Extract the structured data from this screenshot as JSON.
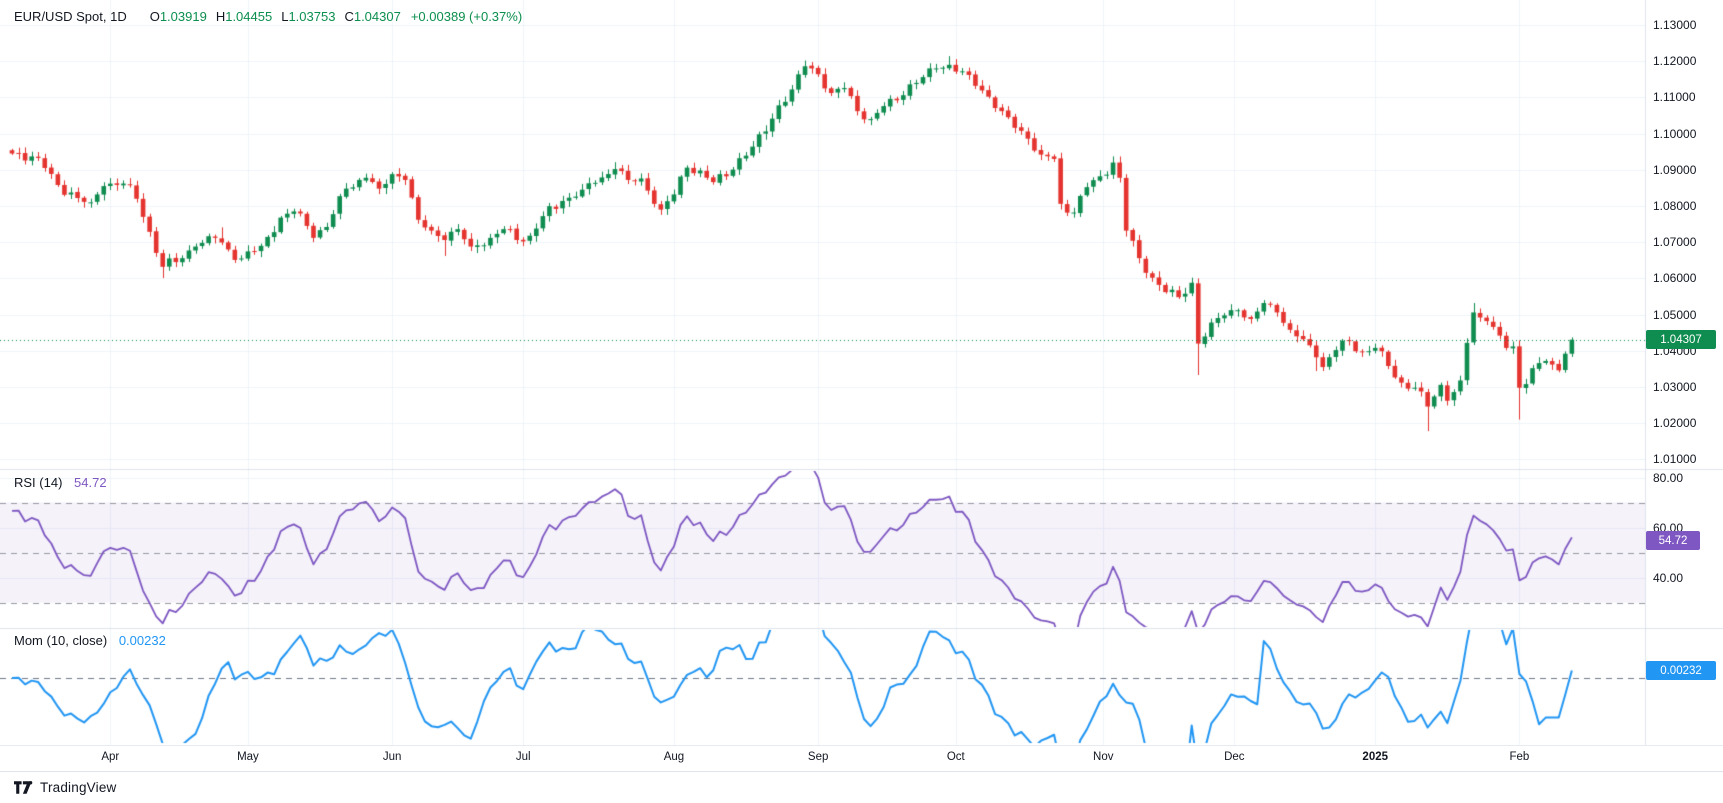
{
  "header": {
    "symbol_title": "EUR/USD Spot, 1D",
    "ohlc": [
      {
        "k": "O",
        "v": "1.03919"
      },
      {
        "k": "H",
        "v": "1.04455"
      },
      {
        "k": "L",
        "v": "1.03753"
      },
      {
        "k": "C",
        "v": "1.04307"
      }
    ],
    "change": "+0.00389 (+0.37%)"
  },
  "rsi_legend": {
    "name": "RSI (14)",
    "value": "54.72"
  },
  "mom_legend": {
    "name": "Mom (10, close)",
    "value": "0.00232"
  },
  "badges": {
    "price": "1.04307",
    "rsi": "54.72",
    "mom": "0.00232"
  },
  "footer": {
    "brand": "TradingView"
  },
  "colors": {
    "up": "#0f8c4f",
    "down": "#e5342f",
    "value_green": "#0c8f4e",
    "rsi_line": "#7e57c2",
    "rsi_band_fill": "rgba(126,87,194,0.08)",
    "rsi_dash": "#9598a1",
    "mom_line": "#2196f3",
    "mom_dash": "#6e7687",
    "grid": "#f0f3fa",
    "separator": "#e0e3eb",
    "axis_text": "#131722",
    "last_price_line": "#0b8a52",
    "badge_price_bg": "#0f8c4f",
    "badge_rsi_bg": "#7e57c2",
    "badge_mom_bg": "#2196f3"
  },
  "chart_data": {
    "type": "candlestick",
    "symbol": "EUR/USD Spot",
    "interval": "1D",
    "ohlc_last": {
      "open": 1.03919,
      "high": 1.04455,
      "low": 1.03753,
      "close": 1.04307,
      "change_abs": 0.00389,
      "change_pct": 0.37
    },
    "last_price": 1.04307,
    "num_candles": 239,
    "price_axis": {
      "min": 1.01,
      "max": 1.13,
      "step": 0.01,
      "labels": [
        "1.13000",
        "1.12000",
        "1.11000",
        "1.10000",
        "1.09000",
        "1.08000",
        "1.07000",
        "1.06000",
        "1.05000",
        "1.04000",
        "1.03000",
        "1.02000",
        "1.01000"
      ]
    },
    "close_anchors": [
      [
        0,
        1.0945
      ],
      [
        3,
        1.0937
      ],
      [
        5,
        1.0905
      ],
      [
        7,
        1.0858
      ],
      [
        10,
        1.0822
      ],
      [
        12,
        1.081
      ],
      [
        14,
        1.0855
      ],
      [
        17,
        1.0862
      ],
      [
        19,
        1.082
      ],
      [
        20,
        1.077
      ],
      [
        23,
        1.0632
      ],
      [
        25,
        1.0645
      ],
      [
        28,
        1.0688
      ],
      [
        31,
        1.0712
      ],
      [
        33,
        1.068
      ],
      [
        35,
        1.0655
      ],
      [
        38,
        1.069
      ],
      [
        41,
        1.0768
      ],
      [
        43,
        1.0785
      ],
      [
        45,
        1.0745
      ],
      [
        46,
        1.0712
      ],
      [
        48,
        1.0742
      ],
      [
        51,
        1.0848
      ],
      [
        54,
        1.0878
      ],
      [
        56,
        1.0848
      ],
      [
        58,
        1.0888
      ],
      [
        60,
        1.0872
      ],
      [
        62,
        1.0762
      ],
      [
        64,
        1.0732
      ],
      [
        66,
        1.0706
      ],
      [
        68,
        1.0736
      ],
      [
        70,
        1.0688
      ],
      [
        73,
        1.0712
      ],
      [
        75,
        1.0736
      ],
      [
        77,
        1.0706
      ],
      [
        79,
        1.0718
      ],
      [
        81,
        1.0772
      ],
      [
        84,
        1.0814
      ],
      [
        86,
        1.0826
      ],
      [
        89,
        1.0864
      ],
      [
        92,
        1.0902
      ],
      [
        94,
        1.0872
      ],
      [
        96,
        1.0876
      ],
      [
        99,
        1.079
      ],
      [
        101,
        1.0832
      ],
      [
        103,
        1.0906
      ],
      [
        105,
        1.0898
      ],
      [
        107,
        1.0866
      ],
      [
        109,
        1.0882
      ],
      [
        111,
        1.0932
      ],
      [
        113,
        1.0964
      ],
      [
        115,
        1.1006
      ],
      [
        117,
        1.1078
      ],
      [
        119,
        1.1122
      ],
      [
        121,
        1.1186
      ],
      [
        123,
        1.1164
      ],
      [
        125,
        1.1112
      ],
      [
        127,
        1.1126
      ],
      [
        129,
        1.1062
      ],
      [
        131,
        1.104
      ],
      [
        133,
        1.1076
      ],
      [
        135,
        1.1092
      ],
      [
        137,
        1.1136
      ],
      [
        139,
        1.1156
      ],
      [
        141,
        1.118
      ],
      [
        143,
        1.119
      ],
      [
        145,
        1.1172
      ],
      [
        147,
        1.1132
      ],
      [
        149,
        1.1102
      ],
      [
        151,
        1.1062
      ],
      [
        153,
        1.1016
      ],
      [
        155,
        1.0986
      ],
      [
        157,
        1.0942
      ],
      [
        159,
        1.093
      ],
      [
        160,
        1.0806
      ],
      [
        162,
        1.0782
      ],
      [
        164,
        1.0852
      ],
      [
        166,
        1.0882
      ],
      [
        168,
        1.092
      ],
      [
        169,
        1.0878
      ],
      [
        170,
        1.0732
      ],
      [
        172,
        1.0656
      ],
      [
        174,
        1.0602
      ],
      [
        176,
        1.0562
      ],
      [
        178,
        1.0548
      ],
      [
        180,
        1.0588
      ],
      [
        181,
        1.042
      ],
      [
        183,
        1.0478
      ],
      [
        185,
        1.0498
      ],
      [
        187,
        1.0512
      ],
      [
        189,
        1.0488
      ],
      [
        191,
        1.0532
      ],
      [
        193,
        1.0506
      ],
      [
        195,
        1.0458
      ],
      [
        197,
        1.0432
      ],
      [
        199,
        1.0382
      ],
      [
        200,
        1.0355
      ],
      [
        202,
        1.0402
      ],
      [
        204,
        1.0428
      ],
      [
        206,
        1.0396
      ],
      [
        208,
        1.0408
      ],
      [
        210,
        1.0358
      ],
      [
        212,
        1.0312
      ],
      [
        214,
        1.0298
      ],
      [
        216,
        1.0246
      ],
      [
        218,
        1.0306
      ],
      [
        219,
        1.0262
      ],
      [
        221,
        1.0318
      ],
      [
        222,
        1.0422
      ],
      [
        223,
        1.0506
      ],
      [
        224,
        1.0492
      ],
      [
        225,
        1.0482
      ],
      [
        226,
        1.0466
      ],
      [
        227,
        1.0442
      ],
      [
        228,
        1.0408
      ],
      [
        229,
        1.0412
      ],
      [
        230,
        1.0298
      ],
      [
        231,
        1.0308
      ],
      [
        232,
        1.0352
      ],
      [
        233,
        1.0366
      ],
      [
        234,
        1.0372
      ],
      [
        235,
        1.0362
      ],
      [
        236,
        1.0346
      ],
      [
        237,
        1.0392
      ],
      [
        238,
        1.04307
      ]
    ],
    "wick_overrides": [
      [
        23,
        "low",
        1.0601
      ],
      [
        32,
        "high",
        1.0741
      ],
      [
        66,
        "low",
        1.0662
      ],
      [
        92,
        "high",
        1.0921
      ],
      [
        121,
        "high",
        1.1202
      ],
      [
        143,
        "high",
        1.1214
      ],
      [
        168,
        "high",
        1.0937
      ],
      [
        181,
        "low",
        1.0333
      ],
      [
        199,
        "low",
        1.0344
      ],
      [
        216,
        "low",
        1.0178
      ],
      [
        223,
        "high",
        1.0532
      ],
      [
        230,
        "low",
        1.021
      ]
    ],
    "month_ticks": [
      {
        "label": "Apr",
        "day": 15
      },
      {
        "label": "May",
        "day": 36
      },
      {
        "label": "Jun",
        "day": 58
      },
      {
        "label": "Jul",
        "day": 78
      },
      {
        "label": "Aug",
        "day": 101
      },
      {
        "label": "Sep",
        "day": 123
      },
      {
        "label": "Oct",
        "day": 144
      },
      {
        "label": "Nov",
        "day": 166.5
      },
      {
        "label": "Dec",
        "day": 186.5
      },
      {
        "label": "2025",
        "day": 208,
        "bold": true
      },
      {
        "label": "Feb",
        "day": 230
      }
    ],
    "rsi": {
      "period": 14,
      "value": 54.72,
      "upper_band": 70,
      "lower_band": 30,
      "middle": 50,
      "axis_labels": [
        {
          "label": "80.00",
          "value": 80
        },
        {
          "label": "60.00",
          "value": 60
        },
        {
          "label": "40.00",
          "value": 40
        }
      ]
    },
    "mom": {
      "period": 10,
      "source": "close",
      "value": 0.00232,
      "zero_line": 0
    }
  }
}
